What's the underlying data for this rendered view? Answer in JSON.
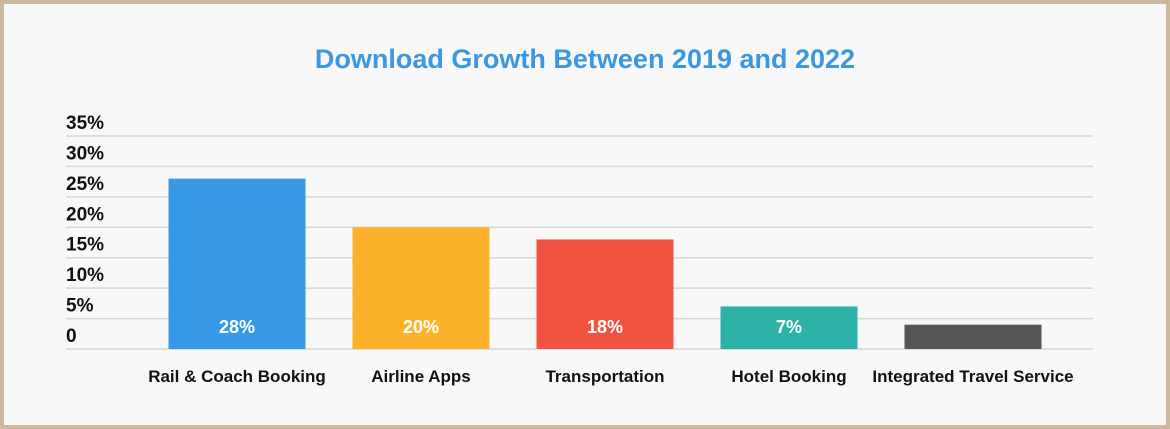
{
  "chart_data": {
    "type": "bar",
    "title": "Download Growth Between 2019 and 2022",
    "categories": [
      "Rail & Coach Booking",
      "Airline Apps",
      "Transportation",
      "Hotel Booking",
      "Integrated Travel Service"
    ],
    "values": [
      28,
      20,
      18,
      7,
      4
    ],
    "data_labels": [
      "28%",
      "20%",
      "18%",
      "7%",
      ""
    ],
    "colors": [
      "#3899e6",
      "#fcb32b",
      "#f05440",
      "#2db2aa",
      "#555555"
    ],
    "ylim": [
      0,
      35
    ],
    "yticks": [
      0,
      5,
      10,
      15,
      20,
      25,
      30,
      35
    ],
    "ytick_labels": [
      "0",
      "5%",
      "10%",
      "15%",
      "20%",
      "25%",
      "30%",
      "35%"
    ],
    "grid": true,
    "title_color": "#3a97e4",
    "xlabel": "",
    "ylabel": ""
  }
}
